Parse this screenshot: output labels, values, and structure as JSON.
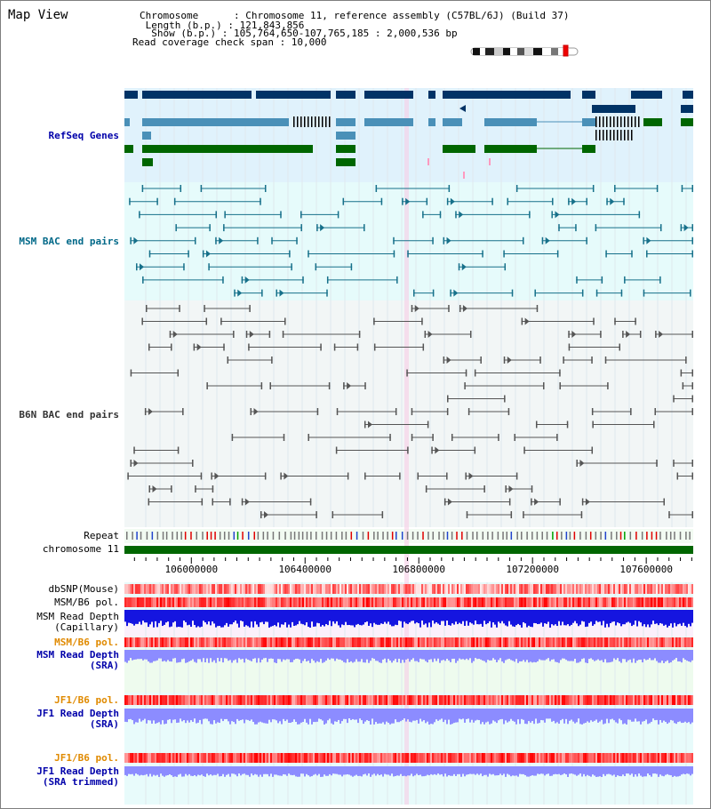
{
  "header": {
    "title": "Map View",
    "info_lines": [
      "Chromosome      : Chromosome 11, reference assembly (C57BL/6J) (Build 37)",
      " Length (b.p.) : 121,843,856",
      "  Show (b.p.) : 105,764,650-107,765,185 : 2,000,536 bp",
      "Read coverage check span : 10,000"
    ]
  },
  "tracks": {
    "refseq": "RefSeq Genes",
    "msm_bac": "MSM BAC end pairs",
    "b6n_bac": "B6N BAC end pairs",
    "repeat": "Repeat",
    "chromosome": "chromosome 11",
    "dbsnp": "dbSNP(Mouse)",
    "msm_b6_pol_1": "MSM/B6 pol.",
    "msm_depth_cap_1": "MSM Read Depth",
    "msm_depth_cap_2": "(Capillary)",
    "msm_b6_pol_2": "MSM/B6 pol.",
    "msm_depth_sra_1": "MSM Read Depth",
    "msm_depth_sra_2": "(SRA)",
    "jf1_b6_pol_1": "JF1/B6 pol.",
    "jf1_depth_sra_1": "JF1 Read Depth",
    "jf1_depth_sra_2": "(SRA)",
    "jf1_b6_pol_2": "JF1/B6 pol.",
    "jf1_depth_trim_1": "JF1 Read Depth",
    "jf1_depth_trim_2": "(SRA trimmed)"
  },
  "axis": {
    "tick_labels": [
      "106000000",
      "106400000",
      "106800000",
      "107200000",
      "107600000"
    ],
    "range": [
      105764650,
      107765185
    ]
  },
  "colors": {
    "refseq_bg": "#e0f2fc",
    "msm_bg": "#e6fbfb",
    "b6n_bg": "#f2f6f6",
    "depth_bg_pink": "#fbf0fb",
    "depth_bg_green": "#eefbee",
    "depth_bg_cyan": "#e8fbfb",
    "gene_navy": "#003366",
    "gene_blue": "#4a90b8",
    "gene_green": "#006600",
    "bac_teal": "#16708a",
    "bac_gray": "#555555",
    "chromosome_green": "#006600",
    "depth_blue": "#1515e0",
    "depth_lavender": "#8c8cff"
  }
}
